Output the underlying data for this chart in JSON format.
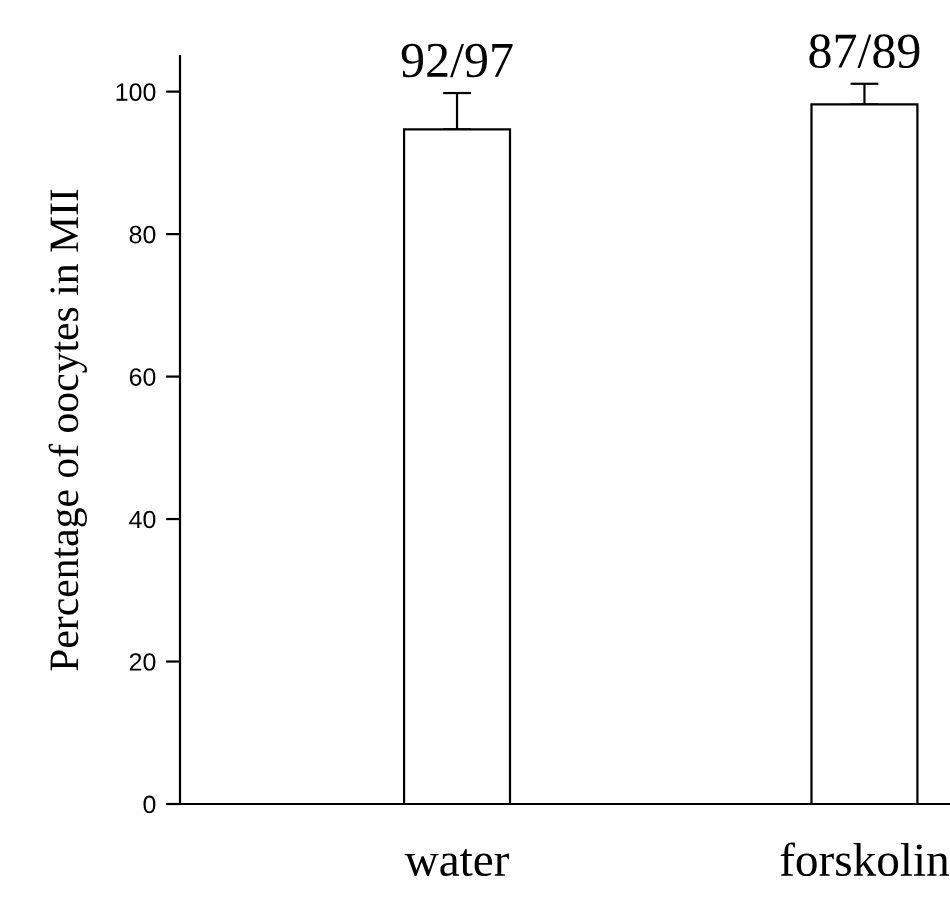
{
  "chart_data": {
    "type": "bar",
    "ylabel": "Percentage of oocytes in MII",
    "categories": [
      "water",
      "forskolin"
    ],
    "values": [
      94.7,
      98.2
    ],
    "color": "#ffffff",
    "errors": [
      [
        94.7,
        99.8
      ],
      [
        98.2,
        101.1
      ]
    ],
    "value_labels": [
      "92/97",
      "87/89"
    ],
    "ylim": [
      0,
      105
    ],
    "yticks": [
      0,
      20,
      40,
      60,
      80,
      100
    ],
    "grid": false,
    "legend": false
  }
}
